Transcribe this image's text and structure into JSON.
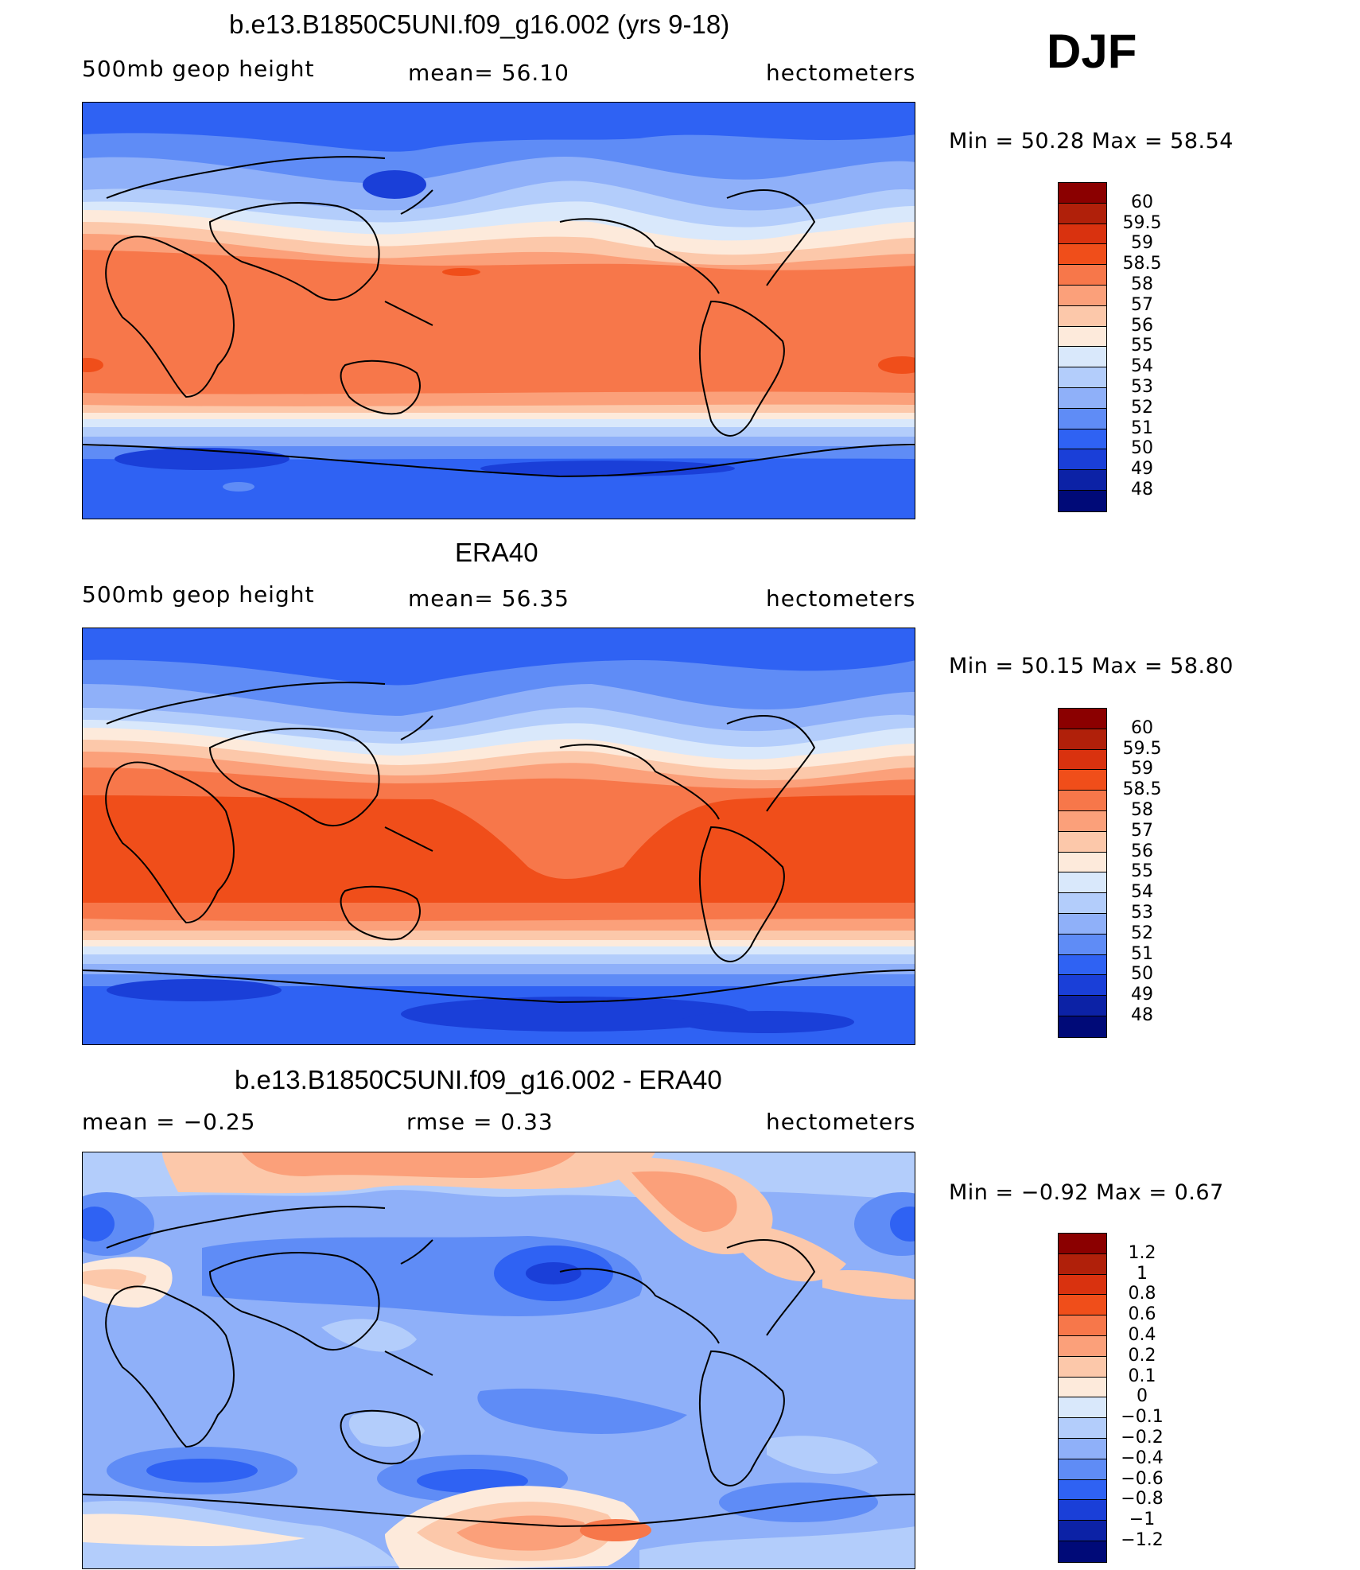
{
  "season": "DJF",
  "panels": [
    {
      "title": "b.e13.B1850C5UNI.f09_g16.002 (yrs 9-18)",
      "left": "500mb  geop  height",
      "center": "mean=   56.10",
      "right": "hectometers",
      "minmax": "Min  =    50.28  Max  =    58.54"
    },
    {
      "title": "ERA40",
      "left": "500mb  geop  height",
      "center": "mean=   56.35",
      "right": "hectometers",
      "minmax": "Min  =    50.15  Max  =    58.80"
    },
    {
      "title": "b.e13.B1850C5UNI.f09_g16.002 - ERA40",
      "left": "mean  =    −0.25",
      "center": "rmse  =     0.33",
      "right": "hectometers",
      "minmax": "Min  =   −0.92  Max  =      0.67"
    }
  ],
  "colorbar_abs": {
    "labels": [
      "60",
      "59.5",
      "59",
      "58.5",
      "58",
      "57",
      "56",
      "55",
      "54",
      "53",
      "52",
      "51",
      "50",
      "49",
      "48"
    ],
    "colors": [
      "#8b0000",
      "#b0200a",
      "#d9320f",
      "#f04e1a",
      "#f7774a",
      "#fba07a",
      "#fcc8aa",
      "#fdeadb",
      "#d9e8fb",
      "#b3cdfb",
      "#8fb0f9",
      "#5f8cf6",
      "#2f62f3",
      "#1a3fd8",
      "#0c22a6",
      "#000a78"
    ]
  },
  "colorbar_diff": {
    "labels": [
      "1.2",
      "1",
      "0.8",
      "0.6",
      "0.4",
      "0.2",
      "0.1",
      "0",
      "−0.1",
      "−0.2",
      "−0.4",
      "−0.6",
      "−0.8",
      "−1",
      "−1.2"
    ],
    "colors": [
      "#8b0000",
      "#b0200a",
      "#d9320f",
      "#f04e1a",
      "#f7774a",
      "#fba07a",
      "#fcc8aa",
      "#fdeadb",
      "#d9e8fb",
      "#b3cdfb",
      "#8fb0f9",
      "#5f8cf6",
      "#2f62f3",
      "#1a3fd8",
      "#0c22a6",
      "#000a78"
    ]
  }
}
